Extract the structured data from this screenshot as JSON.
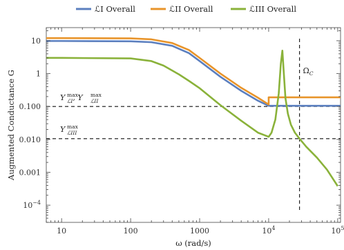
{
  "chart_data": {
    "type": "line",
    "xlabel": "ω (rad/s)",
    "ylabel": "Augmented Conductance G",
    "xscale": "log",
    "yscale": "log",
    "xlim": [
      6,
      110000
    ],
    "ylim": [
      3e-05,
      25
    ],
    "x_ticks": [
      {
        "value": 10,
        "label": "10"
      },
      {
        "value": 100,
        "label": "100"
      },
      {
        "value": 1000,
        "label": "1000"
      },
      {
        "value": 10000,
        "label": "10",
        "sup": "4"
      },
      {
        "value": 100000,
        "label": "10",
        "sup": "5"
      }
    ],
    "y_ticks": [
      {
        "value": 10,
        "label": "10",
        "sup": ""
      },
      {
        "value": 1,
        "label": "1",
        "sup": ""
      },
      {
        "value": 0.1,
        "label": "0.100",
        "sup": ""
      },
      {
        "value": 0.01,
        "label": "0.010",
        "sup": ""
      },
      {
        "value": 0.001,
        "label": "0.001",
        "sup": ""
      },
      {
        "value": 0.0001,
        "label": "10",
        "sup": "−4"
      }
    ],
    "grid": false,
    "legend_position": "top-center",
    "series": [
      {
        "name": "ℒI Overall",
        "color": "#5b7fbf",
        "x": [
          6,
          10,
          100,
          200,
          400,
          700,
          1000,
          2000,
          4000,
          7000,
          10000,
          10000,
          30000,
          110000
        ],
        "y": [
          9.8,
          9.8,
          9.6,
          9.0,
          7.0,
          4.2,
          2.4,
          0.8,
          0.3,
          0.15,
          0.105,
          0.105,
          0.105,
          0.105
        ]
      },
      {
        "name": "ℒII Overall",
        "color": "#e8942a",
        "x": [
          6,
          10,
          100,
          200,
          400,
          700,
          1000,
          2000,
          4000,
          7000,
          10000,
          10000,
          30000,
          110000
        ],
        "y": [
          12.0,
          12.0,
          11.8,
          11.0,
          8.5,
          5.2,
          3.0,
          1.0,
          0.37,
          0.185,
          0.115,
          0.19,
          0.19,
          0.19
        ]
      },
      {
        "name": "ℒIII Overall",
        "color": "#8ab23a",
        "x": [
          6,
          10,
          100,
          200,
          300,
          500,
          700,
          1000,
          2000,
          4000,
          7000,
          10000,
          11000,
          12500,
          14000,
          15000,
          15800,
          16500,
          17500,
          19000,
          21000,
          24000,
          28000,
          35000,
          50000,
          70000,
          100000
        ],
        "y": [
          3.0,
          3.0,
          2.9,
          2.4,
          1.75,
          0.95,
          0.6,
          0.36,
          0.11,
          0.037,
          0.016,
          0.012,
          0.016,
          0.04,
          0.25,
          2.0,
          5.0,
          1.2,
          0.18,
          0.06,
          0.028,
          0.016,
          0.0105,
          0.006,
          0.0028,
          0.0012,
          0.00038
        ]
      }
    ],
    "reference_lines": [
      {
        "orientation": "horizontal",
        "value": 0.1
      },
      {
        "orientation": "horizontal",
        "value": 0.0105
      },
      {
        "orientation": "vertical",
        "value": 28000
      }
    ],
    "annotations": {
      "y_max_12": {
        "text": "Y",
        "sup": "max",
        "subs": [
          "ℒI",
          "ℒII"
        ]
      },
      "y_max_3": {
        "text": "Y",
        "sup": "max",
        "subs": [
          "ℒIII"
        ]
      },
      "omega_c": {
        "text": "Ω",
        "sub": "C"
      }
    }
  }
}
